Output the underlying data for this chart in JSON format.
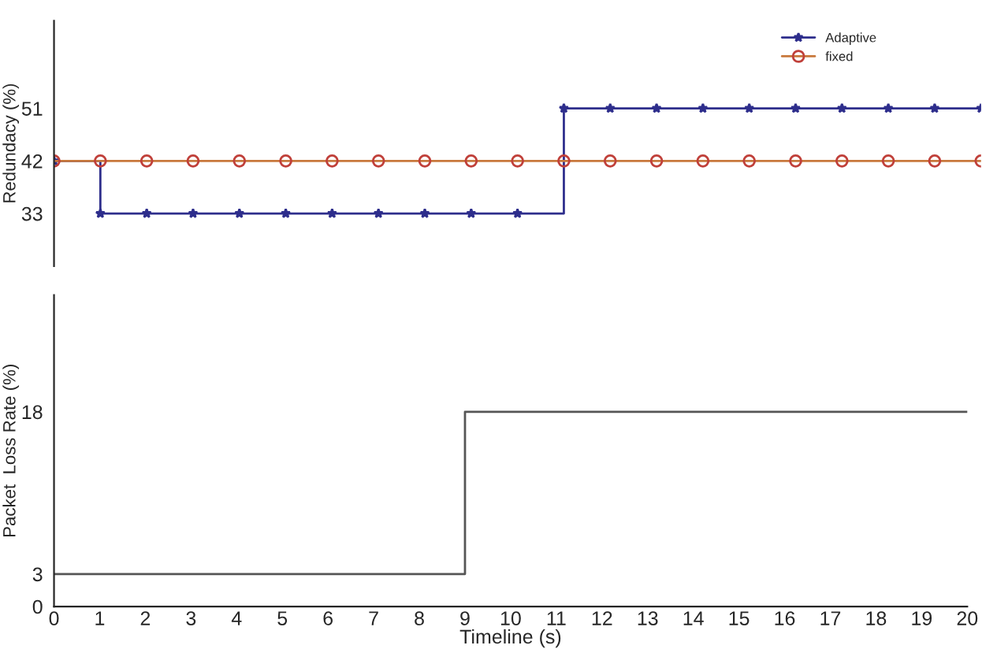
{
  "chart_data": [
    {
      "type": "step",
      "ylabel": "Redundacy (%)",
      "categories": [
        null,
        null,
        null,
        null,
        null,
        null,
        null,
        null,
        null,
        null,
        null,
        null,
        null,
        null,
        null,
        null,
        null,
        null,
        null,
        null,
        null
      ],
      "ylim": [
        24,
        66
      ],
      "yticks": [
        33,
        42,
        51
      ],
      "tick_labels": "y",
      "grid": false,
      "legend": "top right",
      "line_style": "solid",
      "series": [
        {
          "name": "Adaptive",
          "color": "#2e2e8c",
          "marker": "star",
          "values": [
            42,
            33,
            33,
            33,
            33,
            33,
            33,
            33,
            33,
            33,
            33,
            51,
            51,
            51,
            51,
            51,
            51,
            51,
            51,
            51,
            51
          ]
        },
        {
          "name": "fixed",
          "color": "#c8783c",
          "marker": "circle",
          "values": [
            42,
            42,
            42,
            42,
            42,
            42,
            42,
            42,
            42,
            42,
            42,
            42,
            42,
            42,
            42,
            42,
            42,
            42,
            42,
            42,
            42
          ]
        }
      ]
    },
    {
      "type": "step",
      "ylabel": "Packet  Loss Rate (%)",
      "xlabel": "Timeline (s)",
      "xlim": [
        0,
        20
      ],
      "xticks": [
        0,
        1,
        2,
        3,
        4,
        5,
        6,
        7,
        8,
        9,
        10,
        11,
        12,
        13,
        14,
        15,
        16,
        17,
        18,
        19,
        20
      ],
      "ylim": [
        0,
        28.8
      ],
      "yticks": [
        0,
        3,
        18
      ],
      "grid": false,
      "legend": false,
      "marker": "none",
      "series": [
        {
          "color": "#555555",
          "x": [
            0,
            9,
            20
          ],
          "values": [
            3,
            18,
            18
          ]
        }
      ]
    }
  ]
}
